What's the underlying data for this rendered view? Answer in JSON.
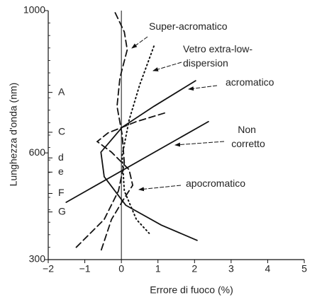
{
  "chart_data": {
    "type": "line",
    "xlabel": "Errore di fuoco (%)",
    "ylabel": "Lunghezza d'onda (nm)",
    "xlim": [
      -2,
      5
    ],
    "xticks": [
      {
        "value": -2,
        "label": "−2"
      },
      {
        "value": -1,
        "label": "−1"
      },
      0,
      1,
      2,
      3,
      4,
      5
    ],
    "ylim": [
      300,
      1000
    ],
    "yticks": [
      300,
      600,
      1000
    ],
    "color": "#111111",
    "fraunhofer_lines": [
      {
        "label": "A",
        "value": 770
      },
      {
        "label": "C",
        "value": 658
      },
      {
        "label": "d",
        "value": 586
      },
      {
        "label": "e",
        "value": 546
      },
      {
        "label": "F",
        "value": 486
      },
      {
        "label": "G",
        "value": 434
      }
    ],
    "series": [
      {
        "name": "Super-acromatico",
        "style": "dashed",
        "x": [
          -0.17,
          0.08,
          0.16,
          -0.04,
          -0.12,
          0.02,
          0.08,
          -0.08,
          -0.47,
          -1.24
        ],
        "values": [
          994,
          940,
          890,
          811,
          731,
          652,
          572,
          493,
          413,
          334
        ]
      },
      {
        "name": "Vetro extra-low-dispersion",
        "style": "dotted",
        "x": [
          0.89,
          0.5,
          0.21,
          0.02,
          0.08,
          0.41,
          0.76
        ],
        "values": [
          900,
          791,
          692,
          592,
          493,
          413,
          374
        ]
      },
      {
        "name": "acromatico",
        "style": "solid",
        "x": [
          2.03,
          0.89,
          0.02,
          -0.56,
          -0.47,
          0.12,
          1.09,
          2.07
        ],
        "values": [
          803,
          731,
          672,
          602,
          533,
          453,
          397,
          354
        ]
      },
      {
        "name": "Non corretto",
        "style": "solid",
        "x": [
          -1.51,
          2.38
        ],
        "values": [
          461,
          688
        ]
      },
      {
        "name": "apocromatico",
        "style": "dashed",
        "x": [
          1.18,
          0.41,
          -0.37,
          -0.66,
          -0.27,
          0.21,
          0.31,
          0.08,
          -0.27,
          -0.56
        ],
        "values": [
          712,
          688,
          656,
          632,
          602,
          553,
          509,
          473,
          413,
          324
        ]
      }
    ]
  }
}
